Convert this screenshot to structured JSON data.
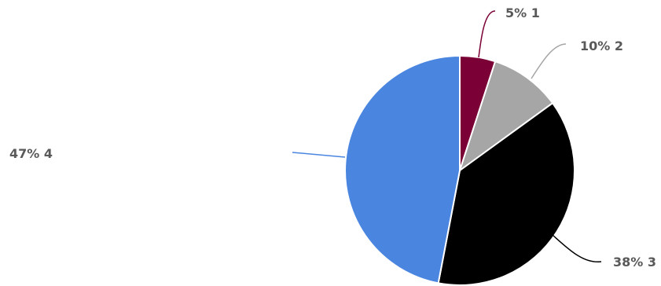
{
  "chart_data": {
    "type": "pie",
    "title": "",
    "slices": [
      {
        "name": "1",
        "value": 5,
        "label": "5% 1",
        "color": "#7a0036"
      },
      {
        "name": "2",
        "value": 10,
        "label": "10% 2",
        "color": "#a6a6a6"
      },
      {
        "name": "3",
        "value": 38,
        "label": "38% 3",
        "color": "#000000"
      },
      {
        "name": "4",
        "value": 47,
        "label": "47% 4",
        "color": "#4a86e0"
      }
    ],
    "start_angle": "12 o'clock",
    "direction": "clockwise",
    "labels": "outside with leader lines",
    "legend": "none"
  }
}
